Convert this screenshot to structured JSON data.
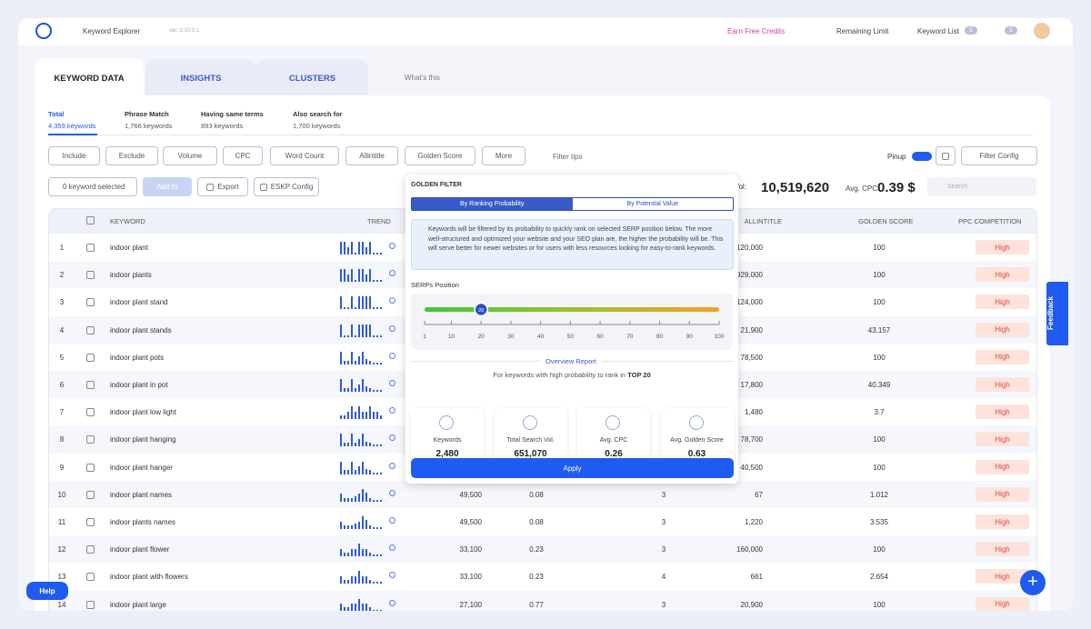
{
  "header": {
    "app_name": "Keyword Explorer",
    "version": "ver. 2.10.0.1",
    "earn_credits": "Earn Free Credits",
    "remaining_limit": "Remaining Limit",
    "keyword_list": "Keyword List",
    "keyword_list_count": "1",
    "notifications_count": "1"
  },
  "tabs": [
    "KEYWORD DATA",
    "INSIGHTS",
    "CLUSTERS"
  ],
  "whats_this": "What's this",
  "summary": [
    {
      "label": "Total",
      "count": "4,359 keywords"
    },
    {
      "label": "Phrase Match",
      "count": "1,766 keywords"
    },
    {
      "label": "Having same terms",
      "count": "893 keywords"
    },
    {
      "label": "Also search for",
      "count": "1,700 keywords"
    }
  ],
  "filters": [
    "Include",
    "Exclude",
    "Volume",
    "CPC",
    "Word Count",
    "Allintitle",
    "Golden Score",
    "More"
  ],
  "filter_tips": "Filter tips",
  "pinup": "Pinup",
  "filter_config": "Filter Config",
  "actions": {
    "selected": "0 keyword selected",
    "add_to": "Add to",
    "export": "Export",
    "eskp_config": "ESKP Config"
  },
  "stats": {
    "search_vol_label": "Search Vol:",
    "search_vol": "10,519,620",
    "avg_cpc_label": "Avg. CPC:",
    "avg_cpc": "0.39 $",
    "search_placeholder": "Search"
  },
  "table": {
    "columns": [
      "KEYWORD",
      "TREND",
      "ALLINTITLE",
      "GOLDEN SCORE",
      "PPC COMPETITION"
    ],
    "rows": [
      {
        "num": "1",
        "keyword": "indoor plant",
        "trend": [
          1,
          1,
          0.6,
          1,
          0.15,
          1,
          1,
          0.6,
          1,
          0.15,
          0.15,
          0.15
        ],
        "volume": null,
        "cpc": null,
        "word_count": null,
        "allintitle": "120,000",
        "golden_score": "100",
        "ppc": "High"
      },
      {
        "num": "2",
        "keyword": "indoor plants",
        "trend": [
          1,
          1,
          0.6,
          1,
          0.15,
          1,
          1,
          0.6,
          1,
          0.15,
          0.15,
          0.15
        ],
        "volume": null,
        "cpc": null,
        "word_count": null,
        "allintitle": "929,000",
        "golden_score": "100",
        "ppc": "High"
      },
      {
        "num": "3",
        "keyword": "indoor plant stand",
        "trend": [
          1,
          0.15,
          0.15,
          1,
          0.15,
          1,
          1,
          1,
          1,
          0.15,
          0.15,
          0.15
        ],
        "volume": null,
        "cpc": null,
        "word_count": null,
        "allintitle": "124,000",
        "golden_score": "100",
        "ppc": "High"
      },
      {
        "num": "4",
        "keyword": "indoor plant stands",
        "trend": [
          1,
          0.15,
          0.15,
          1,
          0.15,
          1,
          1,
          1,
          1,
          0.15,
          0.15,
          0.15
        ],
        "volume": null,
        "cpc": null,
        "word_count": null,
        "allintitle": "21,900",
        "golden_score": "43.157",
        "ppc": "High"
      },
      {
        "num": "5",
        "keyword": "indoor plant pots",
        "trend": [
          1,
          0.3,
          0.3,
          1,
          0.3,
          0.6,
          1,
          0.4,
          0.3,
          0.15,
          0.15,
          0.15
        ],
        "volume": null,
        "cpc": null,
        "word_count": null,
        "allintitle": "78,500",
        "golden_score": "100",
        "ppc": "High"
      },
      {
        "num": "6",
        "keyword": "indoor plant in pot",
        "trend": [
          1,
          0.3,
          0.3,
          1,
          0.3,
          0.6,
          1,
          0.4,
          0.3,
          0.15,
          0.15,
          0.15
        ],
        "volume": null,
        "cpc": null,
        "word_count": null,
        "allintitle": "17,800",
        "golden_score": "40.349",
        "ppc": "High"
      },
      {
        "num": "7",
        "keyword": "indoor plant low light",
        "trend": [
          0.3,
          0.3,
          0.6,
          1,
          0.6,
          1,
          0.6,
          0.6,
          1,
          0.6,
          0.6,
          0.3
        ],
        "volume": null,
        "cpc": null,
        "word_count": null,
        "allintitle": "1,480",
        "golden_score": "3.7",
        "ppc": "High"
      },
      {
        "num": "8",
        "keyword": "indoor plant hanging",
        "trend": [
          1,
          0.3,
          0.3,
          1,
          0.3,
          0.6,
          1,
          0.4,
          0.3,
          0.15,
          0.15,
          0.15
        ],
        "volume": null,
        "cpc": null,
        "word_count": null,
        "allintitle": "78,700",
        "golden_score": "100",
        "ppc": "High"
      },
      {
        "num": "9",
        "keyword": "indoor plant hanger",
        "trend": [
          1,
          0.3,
          0.3,
          1,
          0.3,
          0.6,
          1,
          0.4,
          0.3,
          0.15,
          0.15,
          0.15
        ],
        "volume": null,
        "cpc": null,
        "word_count": null,
        "allintitle": "40,500",
        "golden_score": "100",
        "ppc": "High"
      },
      {
        "num": "10",
        "keyword": "indoor plant names",
        "trend": [
          0.6,
          0.3,
          0.3,
          0.3,
          0.4,
          0.6,
          1,
          0.7,
          0.3,
          0.15,
          0.15,
          0.15
        ],
        "volume": "49,500",
        "cpc": "0.08",
        "word_count": "3",
        "allintitle": "67",
        "golden_score": "1.012",
        "ppc": "High"
      },
      {
        "num": "11",
        "keyword": "indoor plants names",
        "trend": [
          0.6,
          0.3,
          0.3,
          0.3,
          0.4,
          0.6,
          1,
          0.7,
          0.3,
          0.15,
          0.15,
          0.15
        ],
        "volume": "49,500",
        "cpc": "0.08",
        "word_count": "3",
        "allintitle": "1,220",
        "golden_score": "3.535",
        "ppc": "High"
      },
      {
        "num": "12",
        "keyword": "indoor plant flower",
        "trend": [
          0.6,
          0.3,
          0.3,
          0.6,
          0.6,
          1,
          0.6,
          0.6,
          0.3,
          0.15,
          0.15,
          0.15
        ],
        "volume": "33,100",
        "cpc": "0.23",
        "word_count": "3",
        "allintitle": "160,000",
        "golden_score": "100",
        "ppc": "High"
      },
      {
        "num": "13",
        "keyword": "indoor plant with flowers",
        "trend": [
          0.6,
          0.3,
          0.3,
          0.6,
          0.6,
          1,
          0.6,
          0.6,
          0.3,
          0.15,
          0.15,
          0.15
        ],
        "volume": "33,100",
        "cpc": "0.23",
        "word_count": "4",
        "allintitle": "661",
        "golden_score": "2.654",
        "ppc": "High"
      },
      {
        "num": "14",
        "keyword": "indoor plant large",
        "trend": [
          0.6,
          0.3,
          0.3,
          0.6,
          0.6,
          1,
          0.6,
          0.6,
          0.3,
          0.15,
          0.15,
          0.15
        ],
        "volume": "27,100",
        "cpc": "0.77",
        "word_count": "3",
        "allintitle": "20,900",
        "golden_score": "100",
        "ppc": "High"
      }
    ]
  },
  "golden_filter": {
    "title": "GOLDEN FILTER",
    "modes": [
      "By Ranking Probability",
      "By Potential Value"
    ],
    "info": "Keywords will be filtered by its probability to quickly rank on selected SERP position below. The more well-structured and optimized your website and your SEO plan are, the higher the probability will be. This will serve better for newer websites or for users with less resources looking for easy-to-rank keywords.",
    "serps_label": "SERPs Position",
    "slider": {
      "value": 20,
      "xlim": [
        1,
        100
      ],
      "ticks": [
        1,
        10,
        20,
        30,
        40,
        50,
        60,
        70,
        80,
        90,
        100
      ]
    },
    "overview_title": "Overview Report",
    "overview_text": "For keywords with high probability to rank in",
    "overview_top": "TOP 20",
    "cards": [
      {
        "label": "Keywords",
        "value": "2,480"
      },
      {
        "label": "Total Search Vol.",
        "value": "651,070"
      },
      {
        "label": "Avg. CPC",
        "value": "0.26"
      },
      {
        "label": "Avg. Golden Score",
        "value": "0.63"
      }
    ],
    "apply": "Apply"
  },
  "feedback": "Feedback",
  "help": "Help"
}
